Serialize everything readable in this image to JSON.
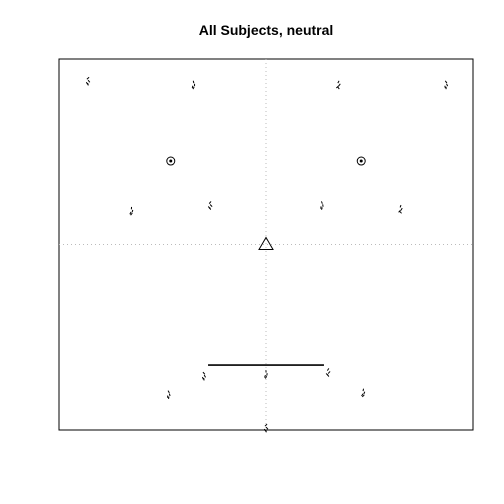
{
  "chart_data": {
    "type": "scatter",
    "title": "All Subjects, neutral",
    "xlabel": "",
    "ylabel": "",
    "xlim": [
      -1,
      1
    ],
    "ylim": [
      -1,
      1
    ],
    "grid": "dotted center lines",
    "center_marker": {
      "shape": "triangle",
      "x": 0,
      "y": 0
    },
    "eyes": [
      {
        "shape": "circled-dot",
        "x": -0.46,
        "y": 0.45
      },
      {
        "shape": "circled-dot",
        "x": 0.46,
        "y": 0.45
      }
    ],
    "mouth_line": {
      "x": [
        -0.28,
        0.28
      ],
      "y": -0.65
    },
    "landmark_clusters": [
      {
        "x": -0.86,
        "y": 0.88
      },
      {
        "x": -0.35,
        "y": 0.86
      },
      {
        "x": 0.35,
        "y": 0.86
      },
      {
        "x": 0.87,
        "y": 0.86
      },
      {
        "x": -0.65,
        "y": 0.18
      },
      {
        "x": -0.27,
        "y": 0.21
      },
      {
        "x": 0.27,
        "y": 0.21
      },
      {
        "x": 0.65,
        "y": 0.19
      },
      {
        "x": -0.3,
        "y": -0.71
      },
      {
        "x": 0.0,
        "y": -0.7
      },
      {
        "x": 0.3,
        "y": -0.69
      },
      {
        "x": -0.47,
        "y": -0.81
      },
      {
        "x": 0.47,
        "y": -0.8
      },
      {
        "x": 0.0,
        "y": -0.99
      }
    ]
  }
}
